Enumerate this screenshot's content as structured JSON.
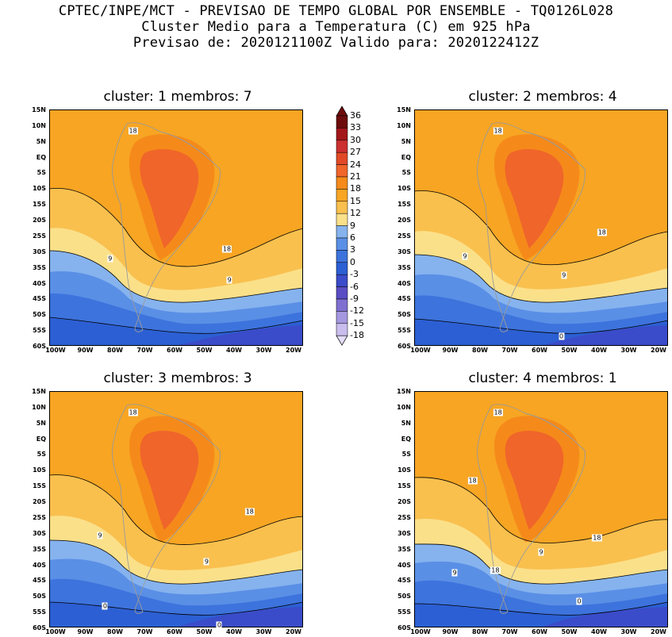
{
  "header": {
    "line1": "CPTEC/INPE/MCT - PREVISAO DE TEMPO GLOBAL POR ENSEMBLE - TQ0126L028",
    "line2": "Cluster Medio para a Temperatura (C) em 925 hPa",
    "line3": "Previsao de: 2020121100Z   Valido para: 2020122412Z"
  },
  "lat_labels": [
    "15N",
    "10N",
    "5N",
    "EQ",
    "5S",
    "10S",
    "15S",
    "20S",
    "25S",
    "30S",
    "35S",
    "40S",
    "45S",
    "50S",
    "55S",
    "60S"
  ],
  "lon_labels": [
    "100W",
    "90W",
    "80W",
    "70W",
    "60W",
    "50W",
    "40W",
    "30W",
    "20W"
  ],
  "colorbar": {
    "labels": [
      "36",
      "33",
      "30",
      "27",
      "24",
      "21",
      "18",
      "15",
      "12",
      "9",
      "6",
      "3",
      "0",
      "-3",
      "-6",
      "-9",
      "-12",
      "-15",
      "-18"
    ],
    "colors": [
      "#6e0c0c",
      "#a3171b",
      "#cc3030",
      "#e24a27",
      "#f0652a",
      "#f58a1a",
      "#f7a523",
      "#f9c04e",
      "#fbe08a",
      "#86b3ee",
      "#5a8fe6",
      "#3d73dc",
      "#2c5fd3",
      "#3a4cc9",
      "#5a4dc4",
      "#7f6fd0",
      "#a598df",
      "#c8bdec",
      "#e5def8"
    ]
  },
  "panels": [
    {
      "title": "cluster: 1   membros: 7",
      "contour_labels": [
        "18",
        "18",
        "9",
        "9"
      ]
    },
    {
      "title": "cluster: 2   membros: 4",
      "contour_labels": [
        "18",
        "18",
        "9",
        "9",
        "0"
      ]
    },
    {
      "title": "cluster: 3   membros: 3",
      "contour_labels": [
        "18",
        "18",
        "9",
        "9",
        "0",
        "0"
      ]
    },
    {
      "title": "cluster: 4   membros: 1",
      "contour_labels": [
        "18",
        "18",
        "18",
        "18",
        "9",
        "9",
        "0"
      ]
    }
  ]
}
